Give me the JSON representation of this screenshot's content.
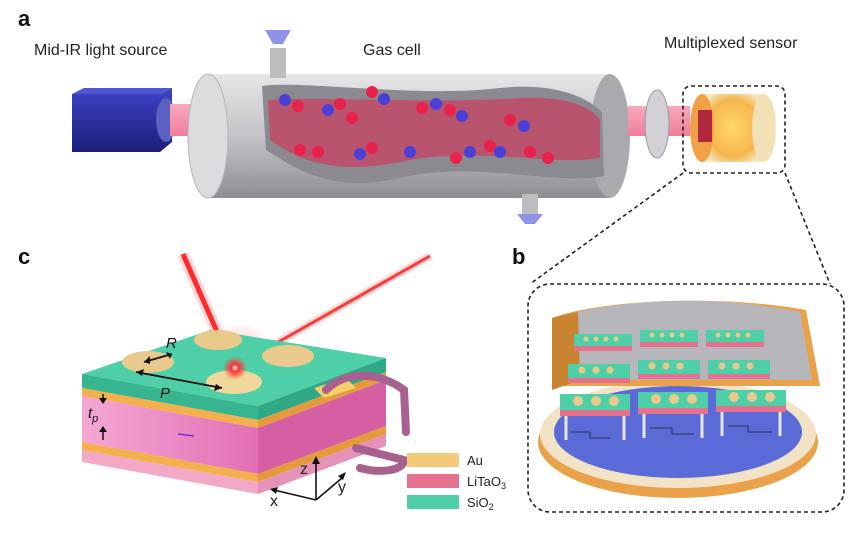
{
  "panels": {
    "a": "a",
    "b": "b",
    "c": "c"
  },
  "labels": {
    "light_source": "Mid-IR light source",
    "gas_cell": "Gas cell",
    "sensor": "Multiplexed sensor"
  },
  "dimensions": {
    "R": "R",
    "P": "P",
    "tp_main": "t",
    "tp_sub": "p"
  },
  "axes": {
    "x": "x",
    "y": "y",
    "z": "z"
  },
  "legend": {
    "items": [
      {
        "label": "Au",
        "color": "#f4c97a"
      },
      {
        "label": "LiTaO",
        "sub": "3",
        "color": "#e4728f"
      },
      {
        "label": "SiO",
        "sub": "2",
        "color": "#4fcfa7"
      }
    ]
  },
  "colors": {
    "source_blue": "#2a2fa0",
    "beam_pink": "#f28aa6",
    "cell_gray": "#c9c9cc",
    "molecule_red": "#e8234a",
    "molecule_blue": "#4a3fd6",
    "laser_red": "#ff2a2a",
    "wire_purple": "#a8608f",
    "base_orange": "#e9a24a",
    "base_blue": "#5a6bd8"
  }
}
